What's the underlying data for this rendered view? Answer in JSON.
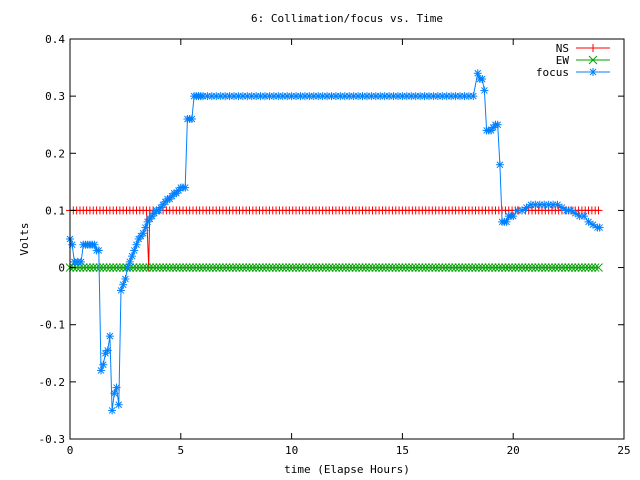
{
  "chart_data": {
    "type": "line",
    "title": "6: Collimation/focus vs. Time",
    "xlabel": "time (Elapse Hours)",
    "ylabel": "Volts",
    "xlim": [
      0,
      25
    ],
    "ylim": [
      -0.3,
      0.4
    ],
    "xticks": [
      "0",
      "5",
      "10",
      "15",
      "20",
      "25"
    ],
    "xtick_values": [
      0,
      5,
      10,
      15,
      20,
      25
    ],
    "yticks": [
      "-0.3",
      "-0.2",
      "-0.1",
      "0",
      "0.1",
      "0.2",
      "0.3",
      "0.4"
    ],
    "ytick_values": [
      -0.3,
      -0.2,
      -0.1,
      0,
      0.1,
      0.2,
      0.3,
      0.4
    ],
    "grid": false,
    "legend_position": "top-right",
    "series": [
      {
        "name": "NS",
        "color": "#ff0000",
        "marker": "plus",
        "x": [
          0,
          0.15,
          0.3,
          0.45,
          0.6,
          0.75,
          0.9,
          1.05,
          1.2,
          1.35,
          1.5,
          1.65,
          1.8,
          1.95,
          2.1,
          2.25,
          2.4,
          2.55,
          2.7,
          2.85,
          3.0,
          3.15,
          3.3,
          3.45,
          3.55,
          3.6,
          3.75,
          3.9,
          4.05,
          4.2,
          4.35,
          4.5,
          4.65,
          4.8,
          4.95,
          5.1,
          5.25,
          5.4,
          5.55,
          5.7,
          5.85,
          6.0,
          6.15,
          6.3,
          6.45,
          6.6,
          6.75,
          6.9,
          7.05,
          7.2,
          7.35,
          7.5,
          7.65,
          7.8,
          7.95,
          8.1,
          8.25,
          8.4,
          8.55,
          8.7,
          8.85,
          9.0,
          9.15,
          9.3,
          9.45,
          9.6,
          9.75,
          9.9,
          10.05,
          10.2,
          10.35,
          10.5,
          10.65,
          10.8,
          10.95,
          11.1,
          11.25,
          11.4,
          11.55,
          11.7,
          11.85,
          12.0,
          12.15,
          12.3,
          12.45,
          12.6,
          12.75,
          12.9,
          13.05,
          13.2,
          13.35,
          13.5,
          13.65,
          13.8,
          13.95,
          14.1,
          14.25,
          14.4,
          14.55,
          14.7,
          14.85,
          15.0,
          15.15,
          15.3,
          15.45,
          15.6,
          15.75,
          15.9,
          16.05,
          16.2,
          16.35,
          16.5,
          16.65,
          16.8,
          16.95,
          17.1,
          17.25,
          17.4,
          17.55,
          17.7,
          17.85,
          18.0,
          18.15,
          18.3,
          18.45,
          18.6,
          18.75,
          18.9,
          19.05,
          19.2,
          19.35,
          19.5,
          19.65,
          19.8,
          19.95,
          20.1,
          20.25,
          20.4,
          20.55,
          20.7,
          20.85,
          21.0,
          21.15,
          21.3,
          21.45,
          21.6,
          21.75,
          21.9,
          22.05,
          22.2,
          22.35,
          22.5,
          22.65,
          22.8,
          22.95,
          23.1,
          23.25,
          23.4,
          23.55,
          23.7,
          23.85
        ],
        "y": [
          0.1,
          0.1,
          0.1,
          0.1,
          0.1,
          0.1,
          0.1,
          0.1,
          0.1,
          0.1,
          0.1,
          0.1,
          0.1,
          0.1,
          0.1,
          0.1,
          0.1,
          0.1,
          0.1,
          0.1,
          0.1,
          0.1,
          0.1,
          0.1,
          0.0,
          0.1,
          0.1,
          0.1,
          0.1,
          0.1,
          0.1,
          0.1,
          0.1,
          0.1,
          0.1,
          0.1,
          0.1,
          0.1,
          0.1,
          0.1,
          0.1,
          0.1,
          0.1,
          0.1,
          0.1,
          0.1,
          0.1,
          0.1,
          0.1,
          0.1,
          0.1,
          0.1,
          0.1,
          0.1,
          0.1,
          0.1,
          0.1,
          0.1,
          0.1,
          0.1,
          0.1,
          0.1,
          0.1,
          0.1,
          0.1,
          0.1,
          0.1,
          0.1,
          0.1,
          0.1,
          0.1,
          0.1,
          0.1,
          0.1,
          0.1,
          0.1,
          0.1,
          0.1,
          0.1,
          0.1,
          0.1,
          0.1,
          0.1,
          0.1,
          0.1,
          0.1,
          0.1,
          0.1,
          0.1,
          0.1,
          0.1,
          0.1,
          0.1,
          0.1,
          0.1,
          0.1,
          0.1,
          0.1,
          0.1,
          0.1,
          0.1,
          0.1,
          0.1,
          0.1,
          0.1,
          0.1,
          0.1,
          0.1,
          0.1,
          0.1,
          0.1,
          0.1,
          0.1,
          0.1,
          0.1,
          0.1,
          0.1,
          0.1,
          0.1,
          0.1,
          0.1,
          0.1,
          0.1,
          0.1,
          0.1,
          0.1,
          0.1,
          0.1,
          0.1,
          0.1,
          0.1,
          0.1,
          0.1,
          0.1,
          0.1,
          0.1,
          0.1,
          0.1,
          0.1,
          0.1,
          0.1,
          0.1,
          0.1,
          0.1,
          0.1,
          0.1,
          0.1,
          0.1,
          0.1,
          0.1,
          0.1,
          0.1,
          0.1,
          0.1,
          0.1,
          0.1,
          0.1,
          0.1,
          0.1,
          0.1,
          0.1
        ]
      },
      {
        "name": "EW",
        "color": "#00a000",
        "marker": "cross",
        "x": [
          0,
          0.15,
          0.3,
          0.45,
          0.6,
          0.75,
          0.9,
          1.05,
          1.2,
          1.35,
          1.5,
          1.65,
          1.8,
          1.95,
          2.1,
          2.25,
          2.4,
          2.55,
          2.7,
          2.85,
          3.0,
          3.15,
          3.3,
          3.45,
          3.6,
          3.75,
          3.9,
          4.05,
          4.2,
          4.35,
          4.5,
          4.65,
          4.8,
          4.95,
          5.1,
          5.25,
          5.4,
          5.55,
          5.7,
          5.85,
          6.0,
          6.15,
          6.3,
          6.45,
          6.6,
          6.75,
          6.9,
          7.05,
          7.2,
          7.35,
          7.5,
          7.65,
          7.8,
          7.95,
          8.1,
          8.25,
          8.4,
          8.55,
          8.7,
          8.85,
          9.0,
          9.15,
          9.3,
          9.45,
          9.6,
          9.75,
          9.9,
          10.05,
          10.2,
          10.35,
          10.5,
          10.65,
          10.8,
          10.95,
          11.1,
          11.25,
          11.4,
          11.55,
          11.7,
          11.85,
          12.0,
          12.15,
          12.3,
          12.45,
          12.6,
          12.75,
          12.9,
          13.05,
          13.2,
          13.35,
          13.5,
          13.65,
          13.8,
          13.95,
          14.1,
          14.25,
          14.4,
          14.55,
          14.7,
          14.85,
          15.0,
          15.15,
          15.3,
          15.45,
          15.6,
          15.75,
          15.9,
          16.05,
          16.2,
          16.35,
          16.5,
          16.65,
          16.8,
          16.95,
          17.1,
          17.25,
          17.4,
          17.55,
          17.7,
          17.85,
          18.0,
          18.15,
          18.3,
          18.45,
          18.6,
          18.75,
          18.9,
          19.05,
          19.2,
          19.35,
          19.5,
          19.65,
          19.8,
          19.95,
          20.1,
          20.25,
          20.4,
          20.55,
          20.7,
          20.85,
          21.0,
          21.15,
          21.3,
          21.45,
          21.6,
          21.75,
          21.9,
          22.05,
          22.2,
          22.35,
          22.5,
          22.65,
          22.8,
          22.95,
          23.1,
          23.25,
          23.4,
          23.55,
          23.7,
          23.85
        ],
        "y": [
          0,
          0,
          0,
          0,
          0,
          0,
          0,
          0,
          0,
          0,
          0,
          0,
          0,
          0,
          0,
          0,
          0,
          0,
          0,
          0,
          0,
          0,
          0,
          0,
          0,
          0,
          0,
          0,
          0,
          0,
          0,
          0,
          0,
          0,
          0,
          0,
          0,
          0,
          0,
          0,
          0,
          0,
          0,
          0,
          0,
          0,
          0,
          0,
          0,
          0,
          0,
          0,
          0,
          0,
          0,
          0,
          0,
          0,
          0,
          0,
          0,
          0,
          0,
          0,
          0,
          0,
          0,
          0,
          0,
          0,
          0,
          0,
          0,
          0,
          0,
          0,
          0,
          0,
          0,
          0,
          0,
          0,
          0,
          0,
          0,
          0,
          0,
          0,
          0,
          0,
          0,
          0,
          0,
          0,
          0,
          0,
          0,
          0,
          0,
          0,
          0,
          0,
          0,
          0,
          0,
          0,
          0,
          0,
          0,
          0,
          0,
          0,
          0,
          0,
          0,
          0,
          0,
          0,
          0,
          0,
          0,
          0,
          0,
          0,
          0,
          0,
          0,
          0,
          0,
          0,
          0,
          0,
          0,
          0,
          0,
          0,
          0,
          0,
          0,
          0,
          0,
          0,
          0,
          0,
          0,
          0,
          0,
          0,
          0,
          0,
          0,
          0,
          0,
          0,
          0,
          0,
          0,
          0,
          0,
          0
        ]
      },
      {
        "name": "focus",
        "color": "#0080ff",
        "marker": "star",
        "x": [
          0,
          0.1,
          0.2,
          0.35,
          0.5,
          0.6,
          0.7,
          0.8,
          0.9,
          1.0,
          1.1,
          1.2,
          1.3,
          1.4,
          1.5,
          1.6,
          1.7,
          1.8,
          1.9,
          2.0,
          2.1,
          2.2,
          2.3,
          2.4,
          2.5,
          2.6,
          2.7,
          2.8,
          2.9,
          3.0,
          3.1,
          3.2,
          3.3,
          3.4,
          3.5,
          3.6,
          3.7,
          3.8,
          3.9,
          4.0,
          4.1,
          4.2,
          4.3,
          4.4,
          4.5,
          4.6,
          4.7,
          4.8,
          4.9,
          5.0,
          5.1,
          5.2,
          5.3,
          5.4,
          5.5,
          5.6,
          5.7,
          5.8,
          5.9,
          6.0,
          6.2,
          6.4,
          6.6,
          6.8,
          7.0,
          7.2,
          7.4,
          7.6,
          7.8,
          8.0,
          8.2,
          8.4,
          8.6,
          8.8,
          9.0,
          9.2,
          9.4,
          9.6,
          9.8,
          10.0,
          10.2,
          10.4,
          10.6,
          10.8,
          11.0,
          11.2,
          11.4,
          11.6,
          11.8,
          12.0,
          12.2,
          12.4,
          12.6,
          12.8,
          13.0,
          13.2,
          13.4,
          13.6,
          13.8,
          14.0,
          14.2,
          14.4,
          14.6,
          14.8,
          15.0,
          15.2,
          15.4,
          15.6,
          15.8,
          16.0,
          16.2,
          16.4,
          16.6,
          16.8,
          17.0,
          17.2,
          17.4,
          17.6,
          17.8,
          18.0,
          18.2,
          18.4,
          18.5,
          18.6,
          18.7,
          18.8,
          18.9,
          19.0,
          19.1,
          19.2,
          19.3,
          19.4,
          19.5,
          19.6,
          19.7,
          19.8,
          19.9,
          20.0,
          20.2,
          20.4,
          20.6,
          20.8,
          21.0,
          21.2,
          21.4,
          21.6,
          21.8,
          22.0,
          22.2,
          22.4,
          22.6,
          22.8,
          23.0,
          23.2,
          23.4,
          23.6,
          23.8,
          23.9
        ],
        "y": [
          0.05,
          0.04,
          0.01,
          0.01,
          0.01,
          0.04,
          0.04,
          0.04,
          0.04,
          0.04,
          0.04,
          0.03,
          0.03,
          -0.18,
          -0.17,
          -0.15,
          -0.145,
          -0.12,
          -0.25,
          -0.22,
          -0.21,
          -0.24,
          -0.04,
          -0.03,
          -0.02,
          0.0,
          0.01,
          0.02,
          0.03,
          0.04,
          0.05,
          0.055,
          0.06,
          0.07,
          0.08,
          0.085,
          0.09,
          0.095,
          0.1,
          0.1,
          0.105,
          0.11,
          0.115,
          0.12,
          0.12,
          0.125,
          0.13,
          0.13,
          0.135,
          0.14,
          0.14,
          0.14,
          0.26,
          0.26,
          0.26,
          0.3,
          0.3,
          0.3,
          0.3,
          0.3,
          0.3,
          0.3,
          0.3,
          0.3,
          0.3,
          0.3,
          0.3,
          0.3,
          0.3,
          0.3,
          0.3,
          0.3,
          0.3,
          0.3,
          0.3,
          0.3,
          0.3,
          0.3,
          0.3,
          0.3,
          0.3,
          0.3,
          0.3,
          0.3,
          0.3,
          0.3,
          0.3,
          0.3,
          0.3,
          0.3,
          0.3,
          0.3,
          0.3,
          0.3,
          0.3,
          0.3,
          0.3,
          0.3,
          0.3,
          0.3,
          0.3,
          0.3,
          0.3,
          0.3,
          0.3,
          0.3,
          0.3,
          0.3,
          0.3,
          0.3,
          0.3,
          0.3,
          0.3,
          0.3,
          0.3,
          0.3,
          0.3,
          0.3,
          0.3,
          0.3,
          0.3,
          0.34,
          0.33,
          0.33,
          0.31,
          0.24,
          0.24,
          0.24,
          0.245,
          0.25,
          0.25,
          0.18,
          0.08,
          0.08,
          0.08,
          0.09,
          0.09,
          0.09,
          0.1,
          0.1,
          0.105,
          0.11,
          0.11,
          0.11,
          0.11,
          0.11,
          0.11,
          0.11,
          0.105,
          0.1,
          0.1,
          0.095,
          0.09,
          0.09,
          0.08,
          0.075,
          0.07,
          0.07
        ]
      }
    ]
  }
}
